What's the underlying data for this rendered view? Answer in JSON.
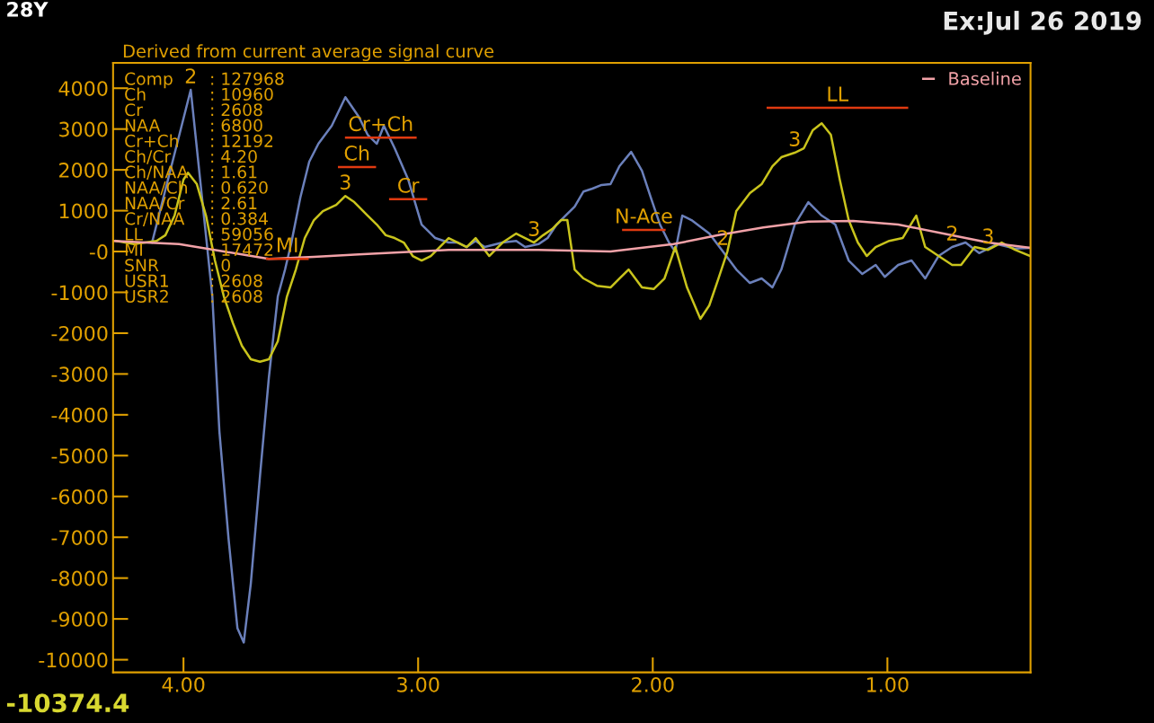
{
  "chart_data": {
    "type": "line",
    "title": "Derived from current average signal curve",
    "xlim": [
      4.3,
      0.39
    ],
    "xticks": [
      {
        "value": 4,
        "label": "4.00"
      },
      {
        "value": 3,
        "label": "3.00"
      },
      {
        "value": 2,
        "label": "2.00"
      },
      {
        "value": 1,
        "label": "1.00"
      }
    ],
    "ylim": [
      -10310,
      4620
    ],
    "yticks": [
      -10000,
      -9000,
      -8000,
      -7000,
      -6000,
      -5000,
      -4000,
      -3000,
      -2000,
      -1000,
      {
        "value": 0,
        "label": "-0"
      },
      1000,
      2000,
      3000,
      4000
    ],
    "grid": false,
    "legend": "top right",
    "line_style": "solid",
    "marker": "none",
    "series": [
      {
        "color": "#6b80bb",
        "x": [
          4.134,
          3.969,
          3.877,
          3.847,
          3.808,
          3.77,
          3.743,
          3.713,
          3.674,
          3.636,
          3.598,
          3.567,
          3.54,
          3.502,
          3.464,
          3.425,
          3.368,
          3.31,
          3.253,
          3.215,
          3.176,
          3.146,
          3.1,
          3.042,
          2.985,
          2.927,
          2.87,
          2.831,
          2.793,
          2.755,
          2.716,
          2.64,
          2.582,
          2.544,
          2.487,
          2.448,
          2.41,
          2.372,
          2.333,
          2.295,
          2.257,
          2.218,
          2.18,
          2.142,
          2.092,
          2.046,
          2.008,
          1.969,
          1.931,
          1.904,
          1.874,
          1.835,
          1.759,
          1.701,
          1.644,
          1.586,
          1.536,
          1.49,
          1.452,
          1.395,
          1.337,
          1.28,
          1.222,
          1.165,
          1.107,
          1.05,
          1.011,
          0.954,
          0.897,
          0.839,
          0.782,
          0.724,
          0.667,
          0.609,
          0.533,
          0.456,
          0.391
        ],
        "values": [
          220,
          3960,
          -1100,
          -4400,
          -7030,
          -9230,
          -9580,
          -8130,
          -5500,
          -3080,
          -1100,
          -440,
          220,
          1320,
          2200,
          2640,
          3080,
          3780,
          3300,
          2860,
          2640,
          3080,
          2530,
          1760,
          660,
          330,
          220,
          220,
          110,
          260,
          110,
          220,
          260,
          110,
          180,
          330,
          660,
          880,
          1100,
          1470,
          1540,
          1630,
          1650,
          2090,
          2440,
          1980,
          1320,
          660,
          220,
          0,
          880,
          770,
          440,
          0,
          -440,
          -770,
          -660,
          -880,
          -440,
          660,
          1210,
          880,
          660,
          -220,
          -550,
          -330,
          -620,
          -330,
          -220,
          -660,
          -110,
          110,
          220,
          -40,
          180,
          70,
          90
        ]
      },
      {
        "color": "#c9c41c",
        "x": [
          4.287,
          4.211,
          4.115,
          4.077,
          4.038,
          4.0,
          3.981,
          3.943,
          3.904,
          3.866,
          3.828,
          3.789,
          3.751,
          3.713,
          3.674,
          3.636,
          3.598,
          3.559,
          3.521,
          3.483,
          3.444,
          3.406,
          3.349,
          3.31,
          3.272,
          3.215,
          3.176,
          3.138,
          3.1,
          3.061,
          3.023,
          2.985,
          2.946,
          2.908,
          2.87,
          2.831,
          2.793,
          2.755,
          2.697,
          2.64,
          2.582,
          2.544,
          2.506,
          2.467,
          2.429,
          2.391,
          2.364,
          2.333,
          2.295,
          2.238,
          2.18,
          2.142,
          2.103,
          2.046,
          1.996,
          1.95,
          1.904,
          1.854,
          1.797,
          1.759,
          1.72,
          1.682,
          1.644,
          1.586,
          1.536,
          1.49,
          1.452,
          1.395,
          1.356,
          1.318,
          1.28,
          1.241,
          1.203,
          1.165,
          1.126,
          1.088,
          1.05,
          0.992,
          0.935,
          0.877,
          0.839,
          0.782,
          0.724,
          0.686,
          0.628,
          0.571,
          0.513,
          0.456,
          0.391
        ],
        "values": [
          260,
          180,
          260,
          400,
          880,
          1760,
          1930,
          1650,
          880,
          -220,
          -1100,
          -1760,
          -2310,
          -2640,
          -2700,
          -2640,
          -2200,
          -1100,
          -440,
          330,
          770,
          990,
          1140,
          1360,
          1210,
          880,
          660,
          400,
          330,
          220,
          -110,
          -220,
          -110,
          110,
          330,
          220,
          110,
          330,
          -110,
          220,
          440,
          330,
          220,
          400,
          550,
          770,
          770,
          -440,
          -660,
          -840,
          -880,
          -660,
          -440,
          -880,
          -920,
          -660,
          110,
          -880,
          -1650,
          -1320,
          -660,
          0,
          990,
          1430,
          1650,
          2090,
          2310,
          2420,
          2530,
          2970,
          3140,
          2860,
          1760,
          770,
          220,
          -110,
          110,
          260,
          330,
          880,
          110,
          -110,
          -330,
          -330,
          110,
          40,
          220,
          40,
          -110
        ]
      },
      {
        "name": "Baseline",
        "color": "#f2a2a8",
        "x": [
          4.3,
          4.019,
          3.828,
          3.636,
          3.444,
          3.253,
          2.87,
          2.487,
          2.18,
          1.912,
          1.72,
          1.529,
          1.337,
          1.146,
          0.954,
          0.762,
          0.571,
          0.391
        ],
        "values": [
          260,
          180,
          0,
          -180,
          -130,
          -70,
          40,
          40,
          0,
          180,
          400,
          590,
          730,
          750,
          660,
          440,
          220,
          90
        ]
      },
      {
        "color": "#e03a10",
        "x": [
          3.307,
          3.011
        ],
        "values": [
          2790,
          2790
        ]
      },
      {
        "color": "#e03a10",
        "x": [
          3.337,
          3.184
        ],
        "values": [
          2070,
          2070
        ]
      },
      {
        "color": "#e03a10",
        "x": [
          3.119,
          2.966
        ],
        "values": [
          1280,
          1280
        ]
      },
      {
        "color": "#e03a10",
        "x": [
          3.644,
          3.471
        ],
        "values": [
          -180,
          -180
        ]
      },
      {
        "color": "#e03a10",
        "x": [
          2.126,
          1.95
        ],
        "values": [
          530,
          530
        ]
      },
      {
        "color": "#e03a10",
        "x": [
          1.51,
          0.916
        ],
        "values": [
          3520,
          3520
        ]
      }
    ],
    "annotations": [
      "28Y",
      "Ex:Jul 26 2019",
      "-10374.4",
      "Comp   : 127968",
      "Ch        : 10960",
      "Cr        : 2608",
      "NAA      : 6800",
      "Cr+Ch  : 12192",
      "Ch/Cr   : 4.20",
      "Ch/NAA : 1.61",
      "NAA/Ch: 0.620",
      "NAA/Cr: 2.61",
      "Cr/NAA: 0.384",
      "LL         : 59056",
      "MI         : 17472",
      "SNR      : 0",
      "USR1    : 2608",
      "USR2    : 2608",
      {
        "text": "Cr+Ch",
        "x": 3.159,
        "y": 2790
      },
      {
        "text": "Ch",
        "x": 3.2605,
        "y": 2070
      },
      {
        "text": "Cr",
        "x": 3.0425,
        "y": 1280
      },
      {
        "text": "MI",
        "x": 3.5575,
        "y": -180
      },
      {
        "text": "N-Ace",
        "x": 2.038,
        "y": 530
      },
      {
        "text": "LL",
        "x": 1.213,
        "y": 3520
      },
      {
        "text": "2",
        "x": 3.969,
        "y": 3960
      },
      {
        "text": "2",
        "x": 1.701,
        "y": 0
      },
      {
        "text": "2",
        "x": 0.724,
        "y": 110
      },
      {
        "text": "3",
        "x": 3.31,
        "y": 1360
      },
      {
        "text": "3",
        "x": 2.506,
        "y": 220
      },
      {
        "text": "3",
        "x": 1.395,
        "y": 2420
      },
      {
        "text": "3",
        "x": 0.571,
        "y": 40
      }
    ]
  }
}
